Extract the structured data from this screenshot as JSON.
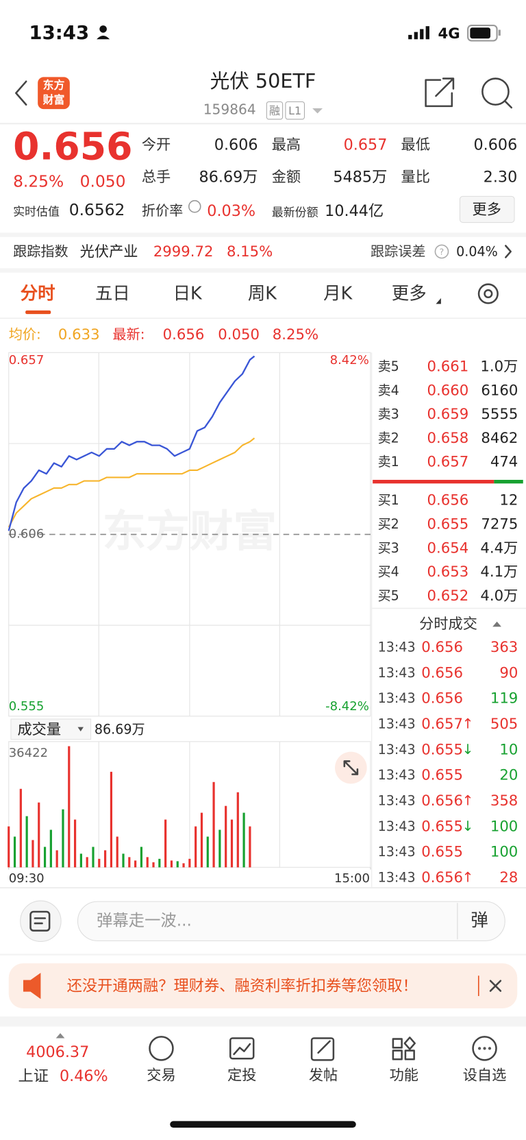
{
  "status_bar": {
    "time": "13:43",
    "network": "4G"
  },
  "header": {
    "logo": [
      "东方",
      "财富"
    ],
    "title": "光伏 50ETF",
    "code": "159864",
    "tags": [
      "融",
      "L1"
    ]
  },
  "quote": {
    "price": "0.656",
    "change_pct": "8.25%",
    "change": "0.050",
    "stats": [
      [
        {
          "label": "今开",
          "value": "0.606"
        },
        {
          "label": "最高",
          "value": "0.657"
        },
        {
          "label": "最低",
          "value": "0.606"
        }
      ],
      [
        {
          "label": "总手",
          "value": "86.69万"
        },
        {
          "label": "金额",
          "value": "5485万"
        },
        {
          "label": "量比",
          "value": "2.30"
        }
      ]
    ],
    "estimate": {
      "label": "实时估值",
      "value": "0.6562"
    },
    "discount": {
      "label": "折价率",
      "value": "0.03%"
    },
    "shares": {
      "label": "最新份额",
      "value": "10.44亿"
    },
    "more": "更多"
  },
  "tracking": {
    "label": "跟踪指数",
    "index": "光伏产业",
    "value": "2999.72",
    "change_pct": "8.15%",
    "error_label": "跟踪误差",
    "error": "0.04%"
  },
  "tabs": [
    "分时",
    "五日",
    "日K",
    "周K",
    "月K",
    "更多"
  ],
  "summary": {
    "avg_label": "均价:",
    "avg": "0.633",
    "latest_label": "最新:",
    "latest": "0.656",
    "change": "0.050",
    "change_pct": "8.25%"
  },
  "chart": {
    "price_color": "#3a56d6",
    "avg_color": "#f7b52c",
    "watermark": "东方财富",
    "xlim": [
      0,
      240
    ],
    "xticks": [
      {
        "value": 0,
        "label": "09:30"
      },
      {
        "value": 240,
        "label": "15:00"
      }
    ],
    "ylim": [
      0.555,
      0.657
    ],
    "base": 0.606,
    "pct_labels": [
      "8.42%",
      "-8.42%"
    ],
    "x": [
      0,
      5,
      10,
      15,
      20,
      25,
      30,
      35,
      40,
      45,
      50,
      55,
      60,
      65,
      70,
      75,
      80,
      85,
      90,
      95,
      100,
      105,
      110,
      115,
      120,
      125,
      130,
      135,
      140,
      145,
      150,
      155,
      160,
      163
    ],
    "price": [
      0.607,
      0.615,
      0.619,
      0.621,
      0.624,
      0.623,
      0.626,
      0.625,
      0.628,
      0.627,
      0.628,
      0.629,
      0.628,
      0.63,
      0.63,
      0.632,
      0.631,
      0.632,
      0.632,
      0.631,
      0.631,
      0.63,
      0.628,
      0.629,
      0.63,
      0.635,
      0.636,
      0.639,
      0.643,
      0.646,
      0.649,
      0.651,
      0.655,
      0.656
    ],
    "avg": [
      0.608,
      0.612,
      0.614,
      0.616,
      0.617,
      0.618,
      0.619,
      0.619,
      0.62,
      0.62,
      0.621,
      0.621,
      0.621,
      0.622,
      0.622,
      0.622,
      0.622,
      0.623,
      0.623,
      0.623,
      0.623,
      0.623,
      0.623,
      0.623,
      0.624,
      0.624,
      0.625,
      0.626,
      0.627,
      0.628,
      0.629,
      0.631,
      0.632,
      0.633
    ],
    "volume": {
      "label": "成交量",
      "total": "86.69万",
      "ylim": [
        0,
        36422
      ],
      "x": [
        0,
        4,
        8,
        12,
        16,
        20,
        24,
        28,
        32,
        36,
        40,
        44,
        48,
        52,
        56,
        60,
        64,
        68,
        72,
        76,
        80,
        84,
        88,
        92,
        96,
        100,
        104,
        108,
        112,
        116,
        120,
        124,
        128,
        132,
        136,
        140,
        144,
        148,
        152,
        156,
        160
      ],
      "values": [
        12000,
        9000,
        23000,
        15000,
        8000,
        19000,
        6000,
        11000,
        5000,
        17000,
        35500,
        14000,
        4000,
        3000,
        6000,
        2500,
        5000,
        28000,
        9000,
        4000,
        3000,
        2000,
        6000,
        3000,
        1500,
        2500,
        14000,
        2000,
        1800,
        1200,
        2500,
        12000,
        16000,
        9000,
        25000,
        11000,
        18000,
        14000,
        22000,
        16000,
        12000
      ],
      "colors": [
        "#e8322e",
        "#17a130",
        "#e8322e",
        "#17a130",
        "#e8322e",
        "#e8322e",
        "#17a130",
        "#17a130",
        "#e8322e",
        "#17a130",
        "#e8322e",
        "#e8322e",
        "#17a130",
        "#e8322e",
        "#17a130",
        "#e8322e",
        "#e8322e",
        "#e8322e",
        "#e8322e",
        "#17a130",
        "#e8322e",
        "#e8322e",
        "#17a130",
        "#e8322e",
        "#e8322e",
        "#17a130",
        "#e8322e",
        "#e8322e",
        "#17a130",
        "#e8322e",
        "#e8322e",
        "#e8322e",
        "#e8322e",
        "#17a130",
        "#e8322e",
        "#17a130",
        "#e8322e",
        "#e8322e",
        "#e8322e",
        "#17a130",
        "#e8322e"
      ]
    }
  },
  "order_book": {
    "asks": [
      {
        "label": "卖5",
        "price": "0.661",
        "volume": "1.0万"
      },
      {
        "label": "卖4",
        "price": "0.660",
        "volume": "6160"
      },
      {
        "label": "卖3",
        "price": "0.659",
        "volume": "5555"
      },
      {
        "label": "卖2",
        "price": "0.658",
        "volume": "8462"
      },
      {
        "label": "卖1",
        "price": "0.657",
        "volume": "474"
      }
    ],
    "bids": [
      {
        "label": "买1",
        "price": "0.656",
        "volume": "12"
      },
      {
        "label": "买2",
        "price": "0.655",
        "volume": "7275"
      },
      {
        "label": "买3",
        "price": "0.654",
        "volume": "4.4万"
      },
      {
        "label": "买4",
        "price": "0.653",
        "volume": "4.1万"
      },
      {
        "label": "买5",
        "price": "0.652",
        "volume": "4.0万"
      }
    ]
  },
  "trades": {
    "title": "分时成交",
    "rows": [
      {
        "time": "13:43",
        "price": "0.656",
        "volume": "363",
        "color": "#e8322e"
      },
      {
        "time": "13:43",
        "price": "0.656",
        "volume": "90",
        "color": "#e8322e"
      },
      {
        "time": "13:43",
        "price": "0.656",
        "volume": "119",
        "color": "#17a130"
      },
      {
        "time": "13:43",
        "price": "0.657",
        "dir": "↑",
        "volume": "505",
        "color": "#e8322e"
      },
      {
        "time": "13:43",
        "price": "0.655",
        "dir": "↓",
        "volume": "10",
        "color": "#17a130"
      },
      {
        "time": "13:43",
        "price": "0.655",
        "volume": "20",
        "color": "#17a130"
      },
      {
        "time": "13:43",
        "price": "0.656",
        "dir": "↑",
        "volume": "358",
        "color": "#e8322e"
      },
      {
        "time": "13:43",
        "price": "0.655",
        "dir": "↓",
        "volume": "100",
        "color": "#17a130"
      },
      {
        "time": "13:43",
        "price": "0.655",
        "volume": "100",
        "color": "#17a130"
      },
      {
        "time": "13:43",
        "price": "0.656",
        "dir": "↑",
        "volume": "28",
        "color": "#e8322e"
      }
    ]
  },
  "comment": {
    "placeholder": "弹幕走一波...",
    "button": "弹"
  },
  "banner": "还没开通两融？理财券、融资利率折扣券等您领取！",
  "footer": {
    "index_value": "4006.37",
    "index_name": "上证",
    "index_pct": "0.46%",
    "items": [
      "交易",
      "定投",
      "发帖",
      "功能",
      "设自选"
    ]
  }
}
